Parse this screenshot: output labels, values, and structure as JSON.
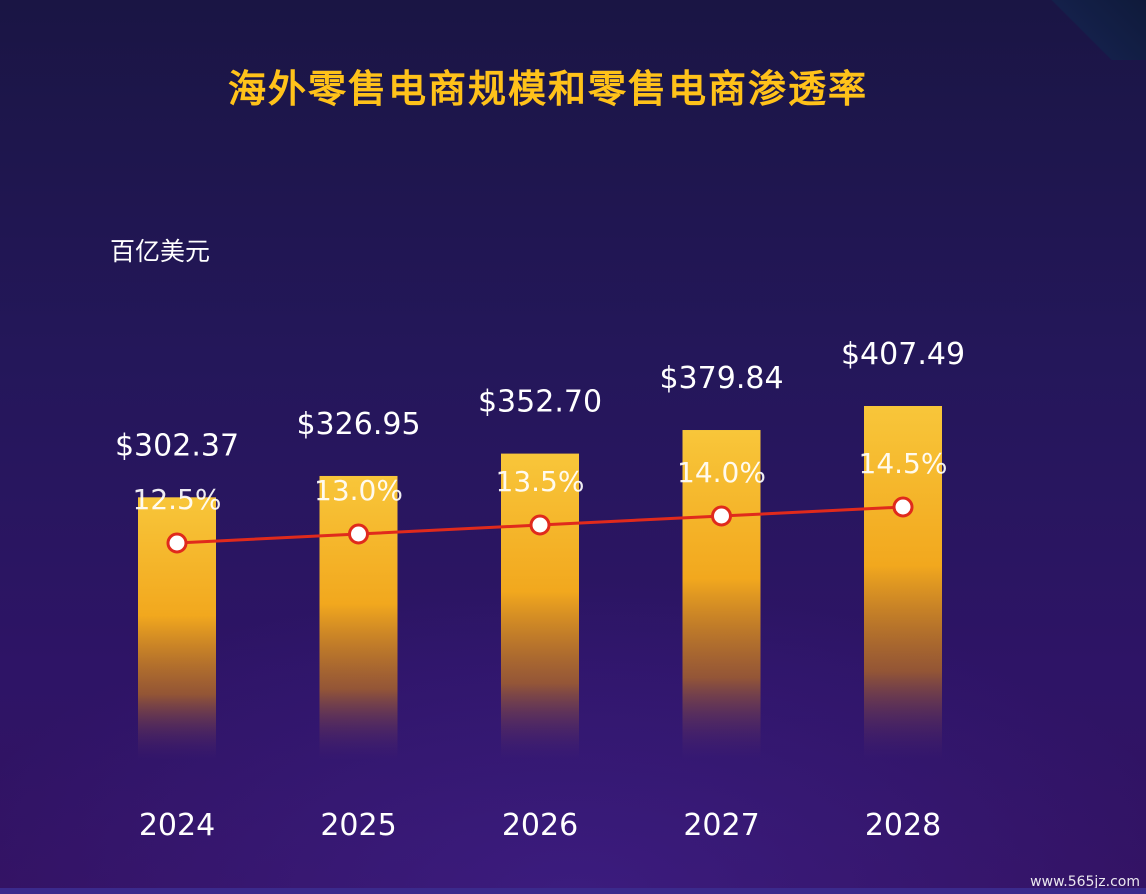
{
  "chart_data": {
    "type": "bar",
    "title": "海外零售电商规模和零售电商渗透率",
    "unit_label": "百亿美元",
    "categories": [
      "2024",
      "2025",
      "2026",
      "2027",
      "2028"
    ],
    "series": [
      {
        "name": "",
        "kind": "bar",
        "values": [
          302.37,
          326.95,
          352.7,
          379.84,
          407.49
        ],
        "labels": [
          "$302.37",
          "$326.95",
          "$352.70",
          "$379.84",
          "$407.49"
        ]
      },
      {
        "name": "",
        "kind": "line",
        "values": [
          12.5,
          13.0,
          13.5,
          14.0,
          14.5
        ],
        "labels": [
          "12.5%",
          "13.0%",
          "13.5%",
          "14.0%",
          "14.5%"
        ]
      }
    ],
    "grid": false,
    "legend": "none"
  },
  "colors": {
    "title": "#ffc21a",
    "bar_top": "#f8c63a",
    "bar_mid": "#f2a81e",
    "line": "#e02a1c",
    "marker_fill": "#ffffff",
    "text": "#ffffff"
  },
  "watermark": "www.565jz.com"
}
